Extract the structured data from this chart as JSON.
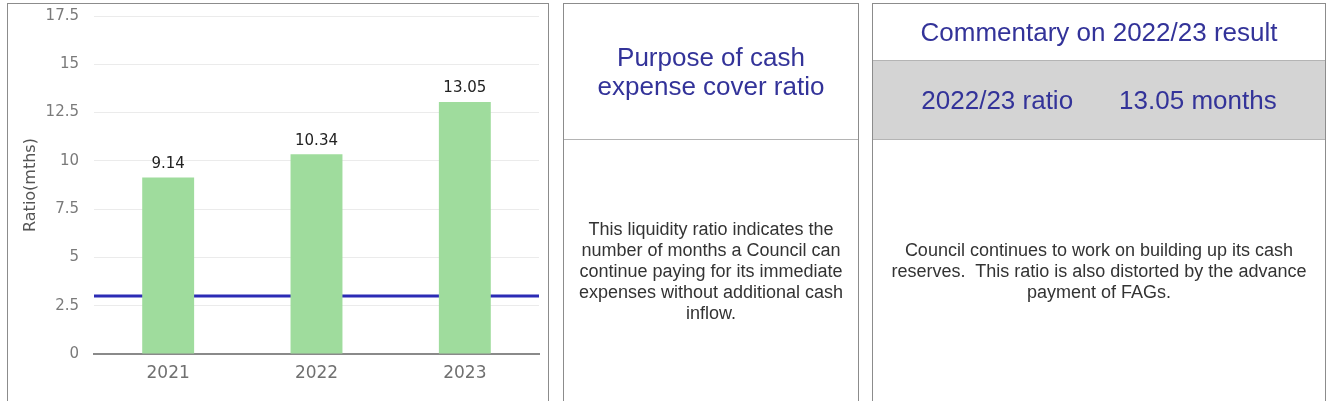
{
  "chart_data": [
    {
      "type": "bar",
      "ylabel": "Ratio(mths)",
      "categories": [
        "2021",
        "2022",
        "2023"
      ],
      "values": [
        9.14,
        10.34,
        13.05
      ],
      "color": "#9fdc9d",
      "ylim": [
        0,
        17.5
      ],
      "yticks": [
        0,
        2.5,
        5,
        7.5,
        10,
        12.5,
        15,
        17.5
      ],
      "grid": "y",
      "data_labels": true,
      "ref_lines": [
        {
          "axis": "y",
          "value": 3,
          "color": "#2b2bb5"
        }
      ]
    },
    {
      "type": "other",
      "title": "Purpose of cash expense cover ratio",
      "annotations": [
        "This liquidity ratio indicates the number of months a Council can continue paying for its immediate expenses without additional cash inflow."
      ]
    },
    {
      "type": "other",
      "title": "Commentary on 2022/23 result",
      "annotations": [
        "2022/23 ratio",
        "13.05 months",
        "Council continues to work on building up its cash reserves.  This ratio is also distorted by the advance payment of FAGs."
      ]
    }
  ]
}
